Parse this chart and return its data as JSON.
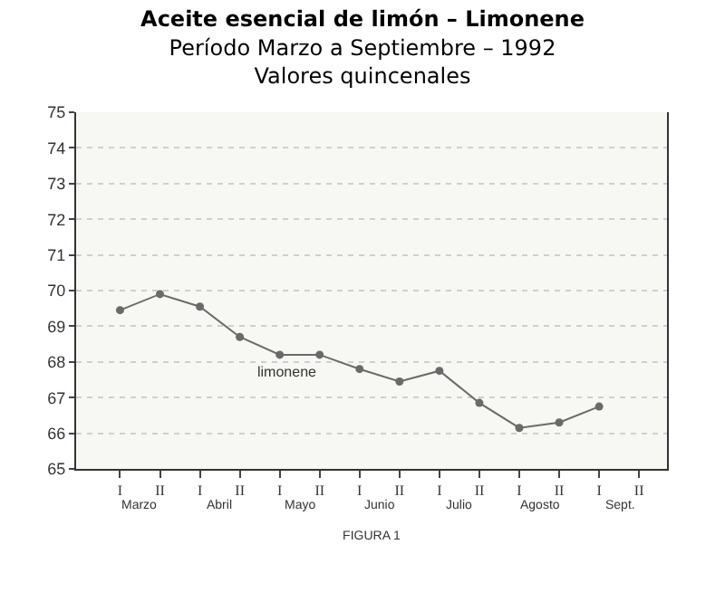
{
  "chart_data": {
    "type": "line",
    "title": "Aceite esencial de limón – Limonene",
    "subtitle": "Período Marzo a Septiembre – 1992\nValores quincenales",
    "xlabel": "FIGURA 1",
    "categories": [
      "I",
      "II",
      "I",
      "II",
      "I",
      "II",
      "I",
      "II",
      "I",
      "II",
      "I",
      "II",
      "I",
      "II"
    ],
    "annotations": [
      "Marzo",
      "Abril",
      "Mayo",
      "Junio",
      "Julio",
      "Agosto",
      "Sept."
    ],
    "series": [
      {
        "name": "limonene",
        "color": "#6a6a6a",
        "values": [
          69.45,
          69.9,
          69.55,
          68.7,
          68.2,
          68.2,
          67.8,
          67.45,
          67.75,
          66.85,
          66.15,
          66.3,
          66.75,
          null
        ]
      }
    ],
    "ylim": [
      65,
      75
    ],
    "yticks": [
      65,
      66,
      67,
      68,
      69,
      70,
      71,
      72,
      73,
      74,
      75
    ],
    "grid": "y",
    "marker": "circle",
    "line_style": "solid",
    "legend": false
  }
}
